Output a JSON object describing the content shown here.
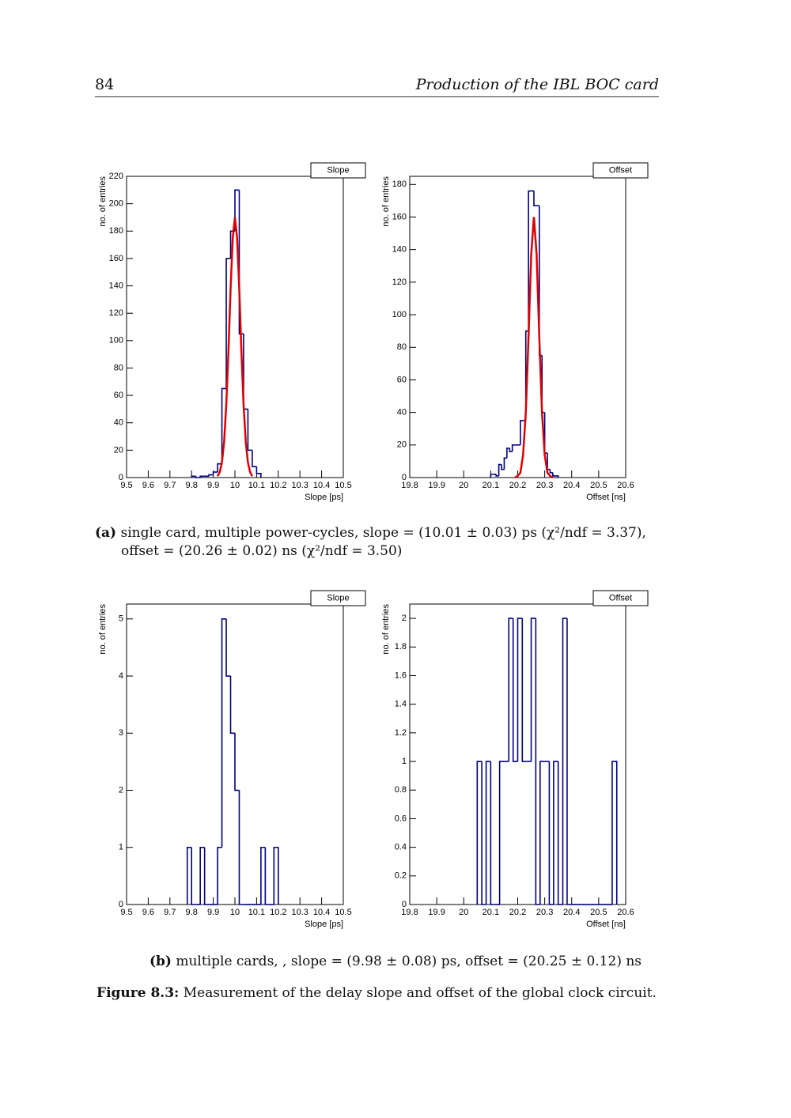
{
  "header": {
    "page_number": "84",
    "title": "Production of the IBL BOC card"
  },
  "chart_data": [
    {
      "type": "histogram",
      "title": "Slope",
      "x_label": "Slope [ps]",
      "y_label": "no. of entries",
      "color": "#000080",
      "bins": [
        9.8,
        9.82,
        9.84,
        9.86,
        9.88,
        9.9,
        9.92,
        9.94,
        9.96,
        9.98,
        10.0,
        10.02,
        10.04,
        10.06,
        10.08,
        10.1,
        10.12
      ],
      "values": [
        1,
        0,
        1,
        1,
        2,
        4,
        10,
        65,
        160,
        180,
        210,
        105,
        50,
        20,
        8,
        3
      ],
      "xlim": [
        9.5,
        10.5
      ],
      "xticks": [
        9.5,
        9.6,
        9.7,
        9.8,
        9.9,
        10,
        10.1,
        10.2,
        10.3,
        10.4,
        10.5
      ],
      "ylim": [
        0,
        220
      ],
      "yticks": [
        0,
        20,
        40,
        60,
        80,
        100,
        120,
        140,
        160,
        180,
        200,
        220
      ],
      "fit": {
        "color": "#e00000",
        "x": [
          9.92,
          9.93,
          9.94,
          9.95,
          9.96,
          9.97,
          9.98,
          9.99,
          10.0,
          10.01,
          10.02,
          10.03,
          10.04,
          10.05,
          10.06,
          10.07,
          10.08
        ],
        "values": [
          1,
          4,
          11,
          26,
          53,
          92,
          138,
          175,
          190,
          175,
          138,
          92,
          53,
          26,
          11,
          4,
          1
        ]
      }
    },
    {
      "type": "histogram",
      "title": "Offset",
      "x_label": "Offset [ns]",
      "y_label": "no. of entries",
      "color": "#000080",
      "bins": [
        20.1,
        20.11,
        20.12,
        20.13,
        20.14,
        20.15,
        20.16,
        20.17,
        20.18,
        20.19,
        20.2,
        20.21,
        20.22,
        20.23,
        20.24,
        20.25,
        20.26,
        20.27,
        20.28,
        20.29,
        20.3,
        20.31,
        20.32,
        20.33,
        20.34,
        20.35
      ],
      "values": [
        2,
        2,
        1,
        8,
        5,
        12,
        18,
        16,
        20,
        20,
        20,
        35,
        35,
        90,
        176,
        176,
        167,
        167,
        75,
        40,
        15,
        5,
        3,
        1,
        1
      ],
      "xlim": [
        19.8,
        20.6
      ],
      "xticks": [
        19.8,
        19.9,
        20,
        20.1,
        20.2,
        20.3,
        20.4,
        20.5,
        20.6
      ],
      "ylim": [
        0,
        185
      ],
      "yticks": [
        0,
        20,
        40,
        60,
        80,
        100,
        120,
        140,
        160,
        180
      ],
      "fit": {
        "color": "#e00000",
        "x": [
          20.19,
          20.2,
          20.21,
          20.22,
          20.23,
          20.24,
          20.25,
          20.26,
          20.27,
          20.28,
          20.29,
          20.3,
          20.31,
          20.32,
          20.33
        ],
        "values": [
          0,
          1,
          3,
          14,
          40,
          86,
          137,
          160,
          137,
          86,
          40,
          14,
          3,
          1,
          0
        ]
      }
    },
    {
      "type": "histogram",
      "title": "Slope",
      "x_label": "Slope [ps]",
      "y_label": "no. of entries",
      "color": "#000080",
      "bins": [
        9.78,
        9.8,
        9.82,
        9.84,
        9.86,
        9.88,
        9.9,
        9.92,
        9.94,
        9.96,
        9.98,
        10.0,
        10.02,
        10.04,
        10.06,
        10.08,
        10.1,
        10.12,
        10.14,
        10.16,
        10.18,
        10.2
      ],
      "values": [
        1,
        0,
        0,
        1,
        0,
        0,
        0,
        1,
        5,
        4,
        3,
        2,
        0,
        0,
        0,
        0,
        0,
        1,
        0,
        0,
        1
      ],
      "xlim": [
        9.5,
        10.5
      ],
      "xticks": [
        9.5,
        9.6,
        9.7,
        9.8,
        9.9,
        10,
        10.1,
        10.2,
        10.3,
        10.4,
        10.5
      ],
      "ylim": [
        0,
        5.26
      ],
      "yticks": [
        0,
        1,
        2,
        3,
        4,
        5
      ]
    },
    {
      "type": "histogram",
      "title": "Offset",
      "x_label": "Offset [ns]",
      "y_label": "no. of entries",
      "color": "#000080",
      "bins": [
        20.05,
        20.067,
        20.083,
        20.1,
        20.117,
        20.133,
        20.15,
        20.167,
        20.183,
        20.2,
        20.217,
        20.233,
        20.25,
        20.267,
        20.283,
        20.3,
        20.317,
        20.333,
        20.35,
        20.367,
        20.383,
        20.4,
        20.417,
        20.433,
        20.45,
        20.467,
        20.483,
        20.5,
        20.517,
        20.533,
        20.55,
        20.567
      ],
      "values": [
        1,
        0,
        1,
        0,
        0,
        1,
        1,
        2,
        1,
        2,
        1,
        1,
        2,
        0,
        1,
        1,
        0,
        1,
        0,
        2,
        0,
        0,
        0,
        0,
        0,
        0,
        0,
        0,
        0,
        0,
        1
      ],
      "xlim": [
        19.8,
        20.6
      ],
      "xticks": [
        19.8,
        19.9,
        20,
        20.1,
        20.2,
        20.3,
        20.4,
        20.5,
        20.6
      ],
      "ylim": [
        0,
        2.1
      ],
      "yticks": [
        0,
        0.2,
        0.4,
        0.6,
        0.8,
        1,
        1.2,
        1.4,
        1.6,
        1.8,
        2
      ]
    }
  ],
  "subcaptions": [
    {
      "label": "(a)",
      "text": "single card, multiple power-cycles, slope = (10.01 ± 0.03) ps (χ²/ndf = 3.37), offset = (20.26 ± 0.02) ns (χ²/ndf = 3.50)"
    },
    {
      "label": "(b)",
      "text": "multiple cards, , slope = (9.98 ± 0.08) ps, offset = (20.25 ± 0.12) ns"
    }
  ],
  "figure_caption": {
    "label": "Figure 8.3:",
    "text": "Measurement of the delay slope and offset of the global clock circuit."
  }
}
